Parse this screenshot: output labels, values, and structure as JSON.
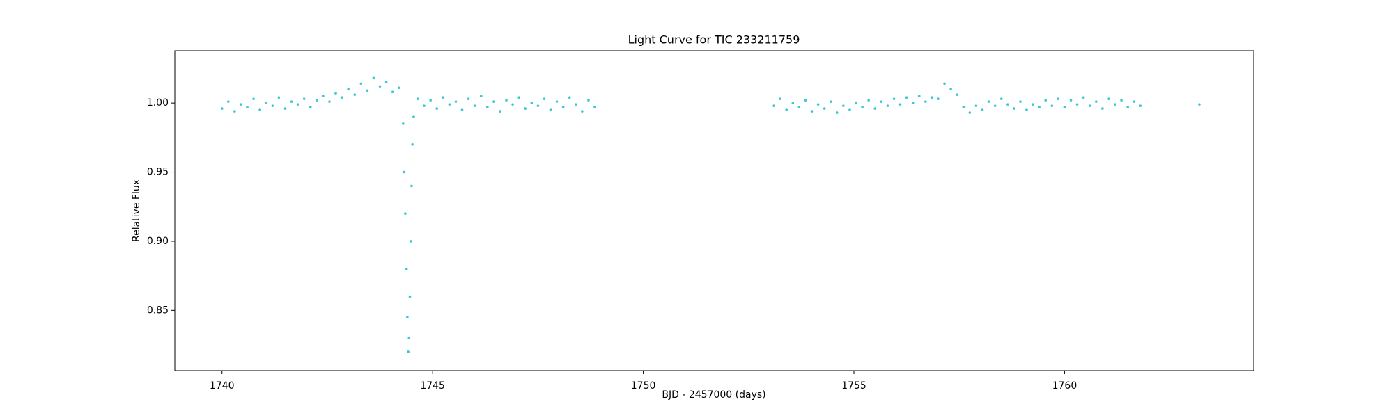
{
  "chart_data": {
    "type": "scatter",
    "title": "Light Curve for TIC 233211759",
    "x_label": "BJD - 2457000 (days)",
    "y_label": "Relative Flux",
    "xlim": [
      1738.88,
      1764.49
    ],
    "ylim": [
      0.8064,
      1.0378
    ],
    "xticks": [
      1740,
      1745,
      1750,
      1755,
      1760
    ],
    "yticks": [
      {
        "value": 0.85,
        "label": "0.85"
      },
      {
        "value": 0.9,
        "label": "0.90"
      },
      {
        "value": 0.95,
        "label": "0.95"
      },
      {
        "value": 1,
        "label": "1.00"
      }
    ],
    "grid": false,
    "series": [
      {
        "color": "#17becf",
        "x": [
          1740.0,
          1740.15,
          1740.3,
          1740.45,
          1740.6,
          1740.75,
          1740.9,
          1741.05,
          1741.2,
          1741.35,
          1741.5,
          1741.65,
          1741.8,
          1741.95,
          1742.1,
          1742.25,
          1742.4,
          1742.55,
          1742.7,
          1742.85,
          1743.0,
          1743.15,
          1743.3,
          1743.45,
          1743.6,
          1743.75,
          1743.9,
          1744.05,
          1744.2,
          1744.3,
          1744.32,
          1744.35,
          1744.38,
          1744.4,
          1744.42,
          1744.44,
          1744.46,
          1744.48,
          1744.5,
          1744.52,
          1744.55,
          1744.65,
          1744.8,
          1744.95,
          1745.1,
          1745.25,
          1745.4,
          1745.55,
          1745.7,
          1745.85,
          1746.0,
          1746.15,
          1746.3,
          1746.45,
          1746.6,
          1746.75,
          1746.9,
          1747.05,
          1747.2,
          1747.35,
          1747.5,
          1747.65,
          1747.8,
          1747.95,
          1748.1,
          1748.25,
          1748.4,
          1748.55,
          1748.7,
          1748.85,
          1753.1,
          1753.25,
          1753.4,
          1753.55,
          1753.7,
          1753.85,
          1754.0,
          1754.15,
          1754.3,
          1754.45,
          1754.6,
          1754.75,
          1754.9,
          1755.05,
          1755.2,
          1755.35,
          1755.5,
          1755.65,
          1755.8,
          1755.95,
          1756.1,
          1756.25,
          1756.4,
          1756.55,
          1756.7,
          1756.85,
          1757.0,
          1757.15,
          1757.3,
          1757.45,
          1757.6,
          1757.75,
          1757.9,
          1758.05,
          1758.2,
          1758.35,
          1758.5,
          1758.65,
          1758.8,
          1758.95,
          1759.1,
          1759.25,
          1759.4,
          1759.55,
          1759.7,
          1759.85,
          1760.0,
          1760.15,
          1760.3,
          1760.45,
          1760.6,
          1760.75,
          1760.9,
          1761.05,
          1761.2,
          1761.35,
          1761.5,
          1761.65,
          1761.8,
          1763.2
        ],
        "values": [
          0.996,
          1.001,
          0.994,
          0.999,
          0.997,
          1.003,
          0.995,
          1.0,
          0.998,
          1.004,
          0.996,
          1.001,
          0.999,
          1.003,
          0.997,
          1.002,
          1.005,
          1.001,
          1.007,
          1.004,
          1.01,
          1.006,
          1.014,
          1.009,
          1.018,
          1.012,
          1.015,
          1.008,
          1.011,
          0.985,
          0.95,
          0.92,
          0.88,
          0.845,
          0.82,
          0.83,
          0.86,
          0.9,
          0.94,
          0.97,
          0.99,
          1.003,
          0.998,
          1.002,
          0.996,
          1.004,
          0.999,
          1.001,
          0.995,
          1.003,
          0.998,
          1.005,
          0.997,
          1.001,
          0.994,
          1.002,
          0.999,
          1.004,
          0.996,
          1.0,
          0.998,
          1.003,
          0.995,
          1.001,
          0.997,
          1.004,
          0.999,
          0.994,
          1.002,
          0.997,
          0.998,
          1.003,
          0.995,
          1.0,
          0.997,
          1.002,
          0.994,
          0.999,
          0.996,
          1.001,
          0.993,
          0.998,
          0.995,
          1.0,
          0.997,
          1.002,
          0.996,
          1.001,
          0.998,
          1.003,
          0.999,
          1.004,
          1.0,
          1.005,
          1.001,
          1.004,
          1.003,
          1.014,
          1.01,
          1.006,
          0.997,
          0.993,
          0.998,
          0.995,
          1.001,
          0.998,
          1.003,
          0.999,
          0.996,
          1.001,
          0.995,
          0.999,
          0.997,
          1.002,
          0.998,
          1.003,
          0.997,
          1.002,
          0.999,
          1.004,
          0.998,
          1.001,
          0.996,
          1.003,
          0.999,
          1.002,
          0.997,
          1.001,
          0.998,
          0.999
        ]
      }
    ]
  }
}
